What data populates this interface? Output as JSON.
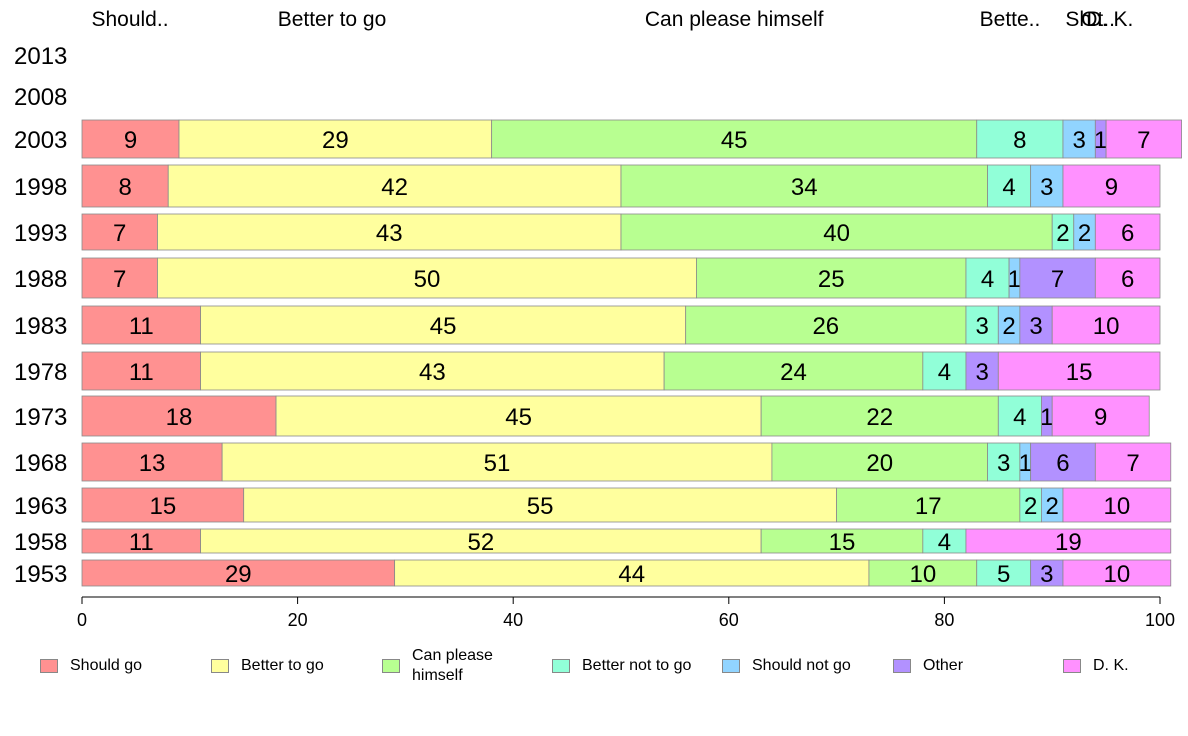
{
  "chart_data": {
    "type": "bar",
    "orientation": "horizontal",
    "stacked": true,
    "categories": [
      "2013",
      "2008",
      "2003",
      "1998",
      "1993",
      "1988",
      "1983",
      "1978",
      "1973",
      "1968",
      "1963",
      "1958",
      "1953"
    ],
    "series": [
      {
        "name": "Should go",
        "color": "#ff9191",
        "values": [
          null,
          null,
          9,
          8,
          7,
          7,
          11,
          11,
          18,
          13,
          15,
          11,
          29
        ]
      },
      {
        "name": "Better to go",
        "color": "#ffff9e",
        "values": [
          null,
          null,
          29,
          42,
          43,
          50,
          45,
          43,
          45,
          51,
          55,
          52,
          44
        ]
      },
      {
        "name": "Can please himself",
        "color": "#b8ff91",
        "values": [
          null,
          null,
          45,
          34,
          40,
          25,
          26,
          24,
          22,
          20,
          17,
          15,
          10
        ]
      },
      {
        "name": "Better not to go",
        "color": "#91ffd8",
        "values": [
          null,
          null,
          8,
          4,
          2,
          4,
          3,
          4,
          4,
          3,
          2,
          4,
          5
        ]
      },
      {
        "name": "Should not go",
        "color": "#91d4ff",
        "values": [
          null,
          null,
          3,
          3,
          2,
          1,
          2,
          0,
          0,
          1,
          2,
          0,
          0
        ]
      },
      {
        "name": "Other",
        "color": "#b291ff",
        "values": [
          null,
          null,
          1,
          0,
          0,
          7,
          3,
          3,
          1,
          6,
          0,
          0,
          3
        ]
      },
      {
        "name": "D. K.",
        "color": "#ff91ff",
        "values": [
          null,
          null,
          7,
          9,
          6,
          6,
          10,
          15,
          9,
          7,
          10,
          19,
          10
        ]
      }
    ],
    "top_labels": [
      "Should..",
      "Better to go",
      "Can please himself",
      "Bette..",
      "Sh..",
      "Ot..",
      "D. K."
    ],
    "xlim": [
      0,
      100
    ],
    "xticks": [
      "0",
      "20",
      "40",
      "60",
      "80",
      "100"
    ],
    "grid": false,
    "legend_position": "bottom"
  },
  "legend": [
    {
      "label": "Should go",
      "color": "#ff9191"
    },
    {
      "label": "Better to go",
      "color": "#ffff9e"
    },
    {
      "label": "Can please himself",
      "color": "#b8ff91"
    },
    {
      "label": "Better not to go",
      "color": "#91ffd8"
    },
    {
      "label": "Should not go",
      "color": "#91d4ff"
    },
    {
      "label": "Other",
      "color": "#b291ff"
    },
    {
      "label": "D. K.",
      "color": "#ff91ff"
    }
  ]
}
